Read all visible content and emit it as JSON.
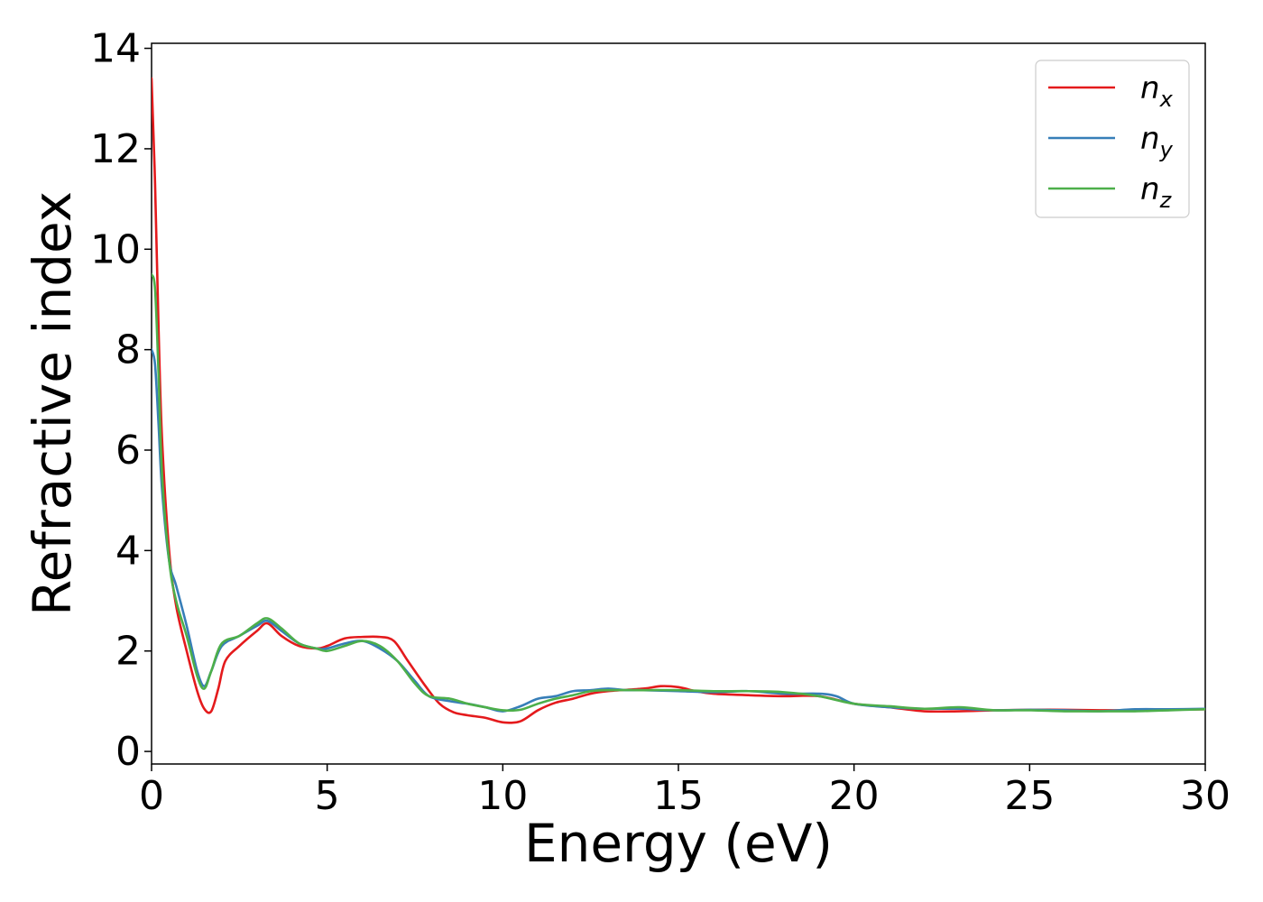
{
  "chart_data": {
    "type": "line",
    "xlabel": "Energy (eV)",
    "ylabel": "Refractive index",
    "xlim": [
      0,
      30
    ],
    "ylim": [
      -0.25,
      14.1
    ],
    "xticks": [
      "0",
      "5",
      "10",
      "15",
      "20",
      "25",
      "30"
    ],
    "yticks": [
      "0",
      "2",
      "4",
      "6",
      "8",
      "10",
      "12",
      "14"
    ],
    "grid": false,
    "legend_position": "top-right",
    "series": [
      {
        "name": "n",
        "subscript": "x",
        "color": "#e41a1c",
        "x": [
          0.0,
          0.1,
          0.2,
          0.3,
          0.5,
          0.7,
          1.0,
          1.3,
          1.5,
          1.7,
          1.9,
          2.1,
          2.5,
          3.0,
          3.3,
          3.7,
          4.2,
          4.7,
          5.0,
          5.5,
          6.0,
          6.5,
          6.9,
          7.3,
          7.8,
          8.2,
          8.6,
          9.0,
          9.5,
          10.0,
          10.5,
          11.0,
          11.5,
          12.0,
          12.5,
          13.0,
          14.0,
          14.5,
          15.0,
          15.5,
          16.0,
          17.0,
          18.0,
          19.0,
          20.0,
          21.0,
          22.0,
          23.0,
          24.0,
          25.0,
          26.0,
          27.0,
          28.0,
          29.0,
          30.0
        ],
        "values": [
          13.4,
          11.3,
          8.4,
          6.2,
          4.0,
          2.9,
          2.0,
          1.2,
          0.85,
          0.8,
          1.25,
          1.8,
          2.1,
          2.4,
          2.55,
          2.3,
          2.1,
          2.05,
          2.1,
          2.25,
          2.28,
          2.28,
          2.2,
          1.8,
          1.3,
          0.95,
          0.78,
          0.72,
          0.67,
          0.58,
          0.6,
          0.82,
          0.97,
          1.05,
          1.15,
          1.2,
          1.25,
          1.3,
          1.28,
          1.2,
          1.15,
          1.12,
          1.1,
          1.1,
          0.95,
          0.88,
          0.8,
          0.8,
          0.82,
          0.83,
          0.83,
          0.82,
          0.82,
          0.83,
          0.84
        ]
      },
      {
        "name": "n",
        "subscript": "y",
        "color": "#377eb8",
        "x": [
          0.0,
          0.1,
          0.2,
          0.3,
          0.5,
          0.7,
          1.0,
          1.3,
          1.5,
          1.7,
          2.0,
          2.5,
          3.0,
          3.3,
          3.7,
          4.2,
          4.7,
          5.0,
          5.5,
          6.0,
          6.5,
          7.0,
          7.5,
          7.9,
          8.5,
          9.0,
          9.5,
          10.0,
          10.5,
          11.0,
          11.5,
          12.0,
          12.5,
          13.0,
          13.5,
          14.0,
          15.0,
          16.0,
          17.0,
          18.0,
          19.0,
          19.5,
          20.0,
          21.0,
          22.0,
          23.0,
          24.0,
          25.0,
          26.0,
          27.0,
          28.0,
          29.0,
          30.0
        ],
        "values": [
          8.0,
          7.7,
          6.5,
          5.2,
          3.8,
          3.3,
          2.5,
          1.6,
          1.3,
          1.6,
          2.1,
          2.3,
          2.5,
          2.6,
          2.4,
          2.15,
          2.05,
          2.05,
          2.15,
          2.2,
          2.05,
          1.8,
          1.4,
          1.1,
          1.0,
          0.95,
          0.88,
          0.8,
          0.9,
          1.05,
          1.1,
          1.2,
          1.22,
          1.25,
          1.22,
          1.22,
          1.2,
          1.18,
          1.2,
          1.15,
          1.15,
          1.1,
          0.95,
          0.88,
          0.85,
          0.85,
          0.82,
          0.83,
          0.82,
          0.8,
          0.84,
          0.84,
          0.85
        ]
      },
      {
        "name": "n",
        "subscript": "z",
        "color": "#4daf4a",
        "x": [
          0.0,
          0.1,
          0.2,
          0.3,
          0.5,
          0.7,
          1.0,
          1.3,
          1.5,
          1.7,
          2.0,
          2.5,
          3.0,
          3.3,
          3.7,
          4.2,
          4.7,
          5.0,
          5.5,
          6.0,
          6.5,
          7.0,
          7.5,
          7.9,
          8.5,
          9.0,
          9.5,
          10.0,
          10.5,
          11.0,
          11.5,
          12.0,
          12.5,
          13.0,
          14.0,
          15.0,
          16.0,
          17.0,
          18.0,
          19.0,
          20.0,
          21.0,
          22.0,
          23.0,
          24.0,
          25.0,
          26.0,
          27.0,
          28.0,
          29.0,
          30.0
        ],
        "values": [
          9.5,
          9.2,
          7.5,
          5.5,
          3.8,
          3.0,
          2.3,
          1.5,
          1.25,
          1.6,
          2.15,
          2.3,
          2.55,
          2.65,
          2.45,
          2.15,
          2.05,
          2.0,
          2.1,
          2.2,
          2.1,
          1.8,
          1.35,
          1.1,
          1.05,
          0.95,
          0.88,
          0.82,
          0.83,
          0.95,
          1.05,
          1.12,
          1.2,
          1.22,
          1.22,
          1.22,
          1.2,
          1.2,
          1.18,
          1.1,
          0.95,
          0.9,
          0.85,
          0.88,
          0.82,
          0.82,
          0.8,
          0.8,
          0.8,
          0.82,
          0.84
        ]
      }
    ]
  }
}
